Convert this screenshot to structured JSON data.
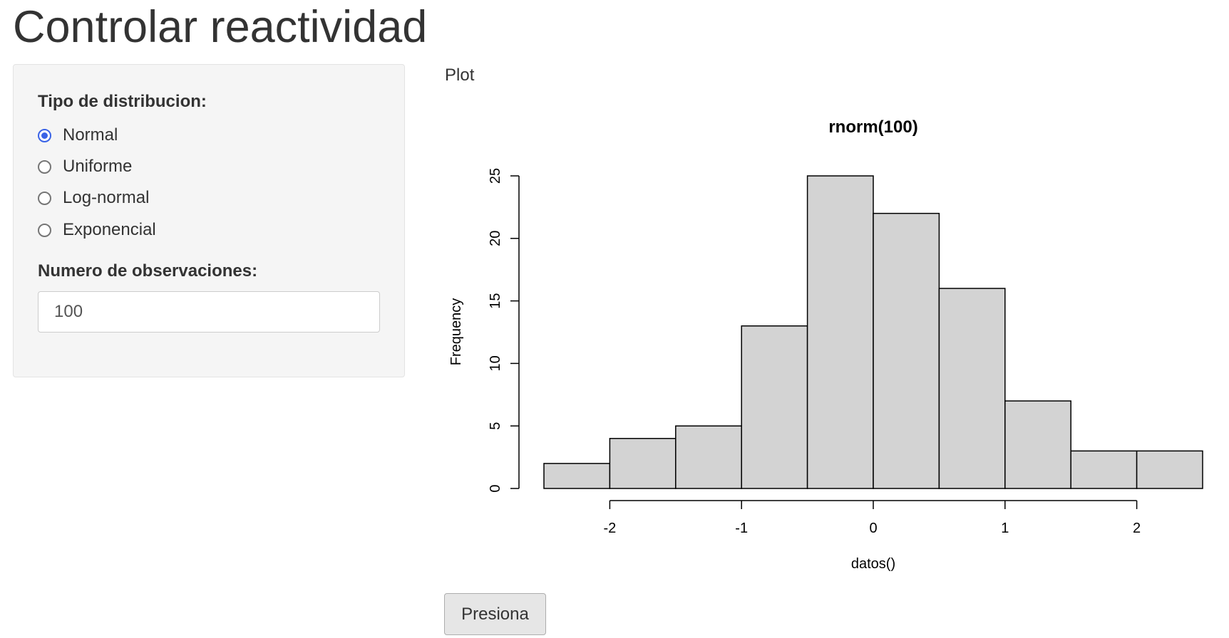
{
  "page": {
    "title": "Controlar reactividad"
  },
  "sidebar": {
    "distribution_label": "Tipo de distribucion:",
    "distribution_options": [
      {
        "label": "Normal",
        "checked": true
      },
      {
        "label": "Uniforme",
        "checked": false
      },
      {
        "label": "Log-normal",
        "checked": false
      },
      {
        "label": "Exponencial",
        "checked": false
      }
    ],
    "observations_label": "Numero de observaciones:",
    "observations_value": "100"
  },
  "main": {
    "tab_label": "Plot",
    "button_label": "Presiona"
  },
  "chart_data": {
    "type": "bar",
    "subtype": "histogram",
    "title": "rnorm(100)",
    "xlabel": "datos()",
    "ylabel": "Frequency",
    "bin_edges": [
      -2.5,
      -2,
      -1.5,
      -1,
      -0.5,
      0,
      0.5,
      1,
      1.5,
      2,
      2.5
    ],
    "values": [
      2,
      4,
      5,
      13,
      25,
      22,
      16,
      7,
      3,
      3
    ],
    "xlim": [
      -2.5,
      2.5
    ],
    "ylim": [
      0,
      25
    ],
    "xticks": [
      -2,
      -1,
      0,
      1,
      2
    ],
    "yticks": [
      0,
      5,
      10,
      15,
      20,
      25
    ],
    "bar_fill": "#d3d3d3",
    "bar_stroke": "#000000",
    "grid": false,
    "legend": "none"
  }
}
